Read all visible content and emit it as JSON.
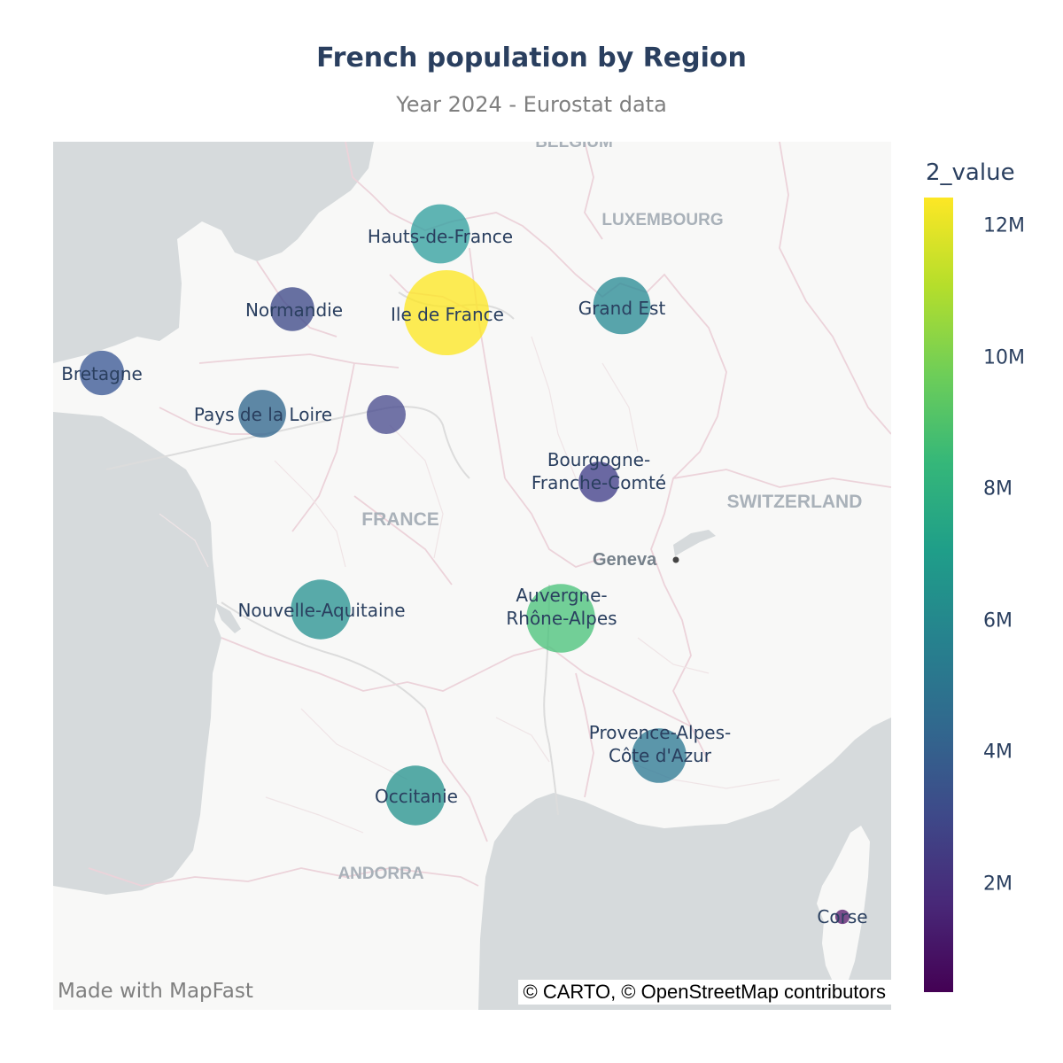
{
  "title": "French population by Region",
  "subtitle": "Year 2024 - Eurostat data",
  "footer": {
    "made_with": "Made with MapFast",
    "attribution": "© CARTO, © OpenStreetMap contributors"
  },
  "colorbar": {
    "title": "2_value",
    "ticks": [
      "12M",
      "10M",
      "8M",
      "6M",
      "4M",
      "2M"
    ],
    "range": [
      350000,
      12500000
    ],
    "colors": [
      "#440154",
      "#482878",
      "#3e4989",
      "#31688e",
      "#26828e",
      "#1f9e89",
      "#35b779",
      "#6ece58",
      "#b5de2b",
      "#fde725"
    ]
  },
  "map_labels": {
    "countries": [
      "BELGIUM",
      "LUXEMBOURG",
      "FRANCE",
      "SWITZERLAND",
      "ANDORRA"
    ],
    "cities": [
      "Geneva"
    ]
  },
  "regions": [
    {
      "name": "Hauts-de-France",
      "value": 6000000,
      "color": "#33a0a0"
    },
    {
      "name": "Ile de France",
      "value": 12400000,
      "color": "#fde725"
    },
    {
      "name": "Normandie",
      "value": 3300000,
      "color": "#3e4989"
    },
    {
      "name": "Grand Est",
      "value": 5600000,
      "color": "#2a8c96"
    },
    {
      "name": "Bretagne",
      "value": 3400000,
      "color": "#3b5996"
    },
    {
      "name": "Pays de la Loire",
      "value": 3900000,
      "color": "#31668e"
    },
    {
      "name": "",
      "value": 2600000,
      "color": "#4a4d8f"
    },
    {
      "name": "Bourgogne-\nFranche-Comté",
      "value": 2800000,
      "color": "#413f8a"
    },
    {
      "name": "Nouvelle-Aquitaine",
      "value": 6100000,
      "color": "#2a9494"
    },
    {
      "name": "Auvergne-\nRhône-Alpes",
      "value": 8100000,
      "color": "#4cc37c"
    },
    {
      "name": "Provence-Alpes-\nCôte d'Azur",
      "value": 5100000,
      "color": "#2e7a95"
    },
    {
      "name": "Occitanie",
      "value": 6100000,
      "color": "#28938f"
    },
    {
      "name": "Corse",
      "value": 350000,
      "color": "#5a1e70"
    }
  ]
}
